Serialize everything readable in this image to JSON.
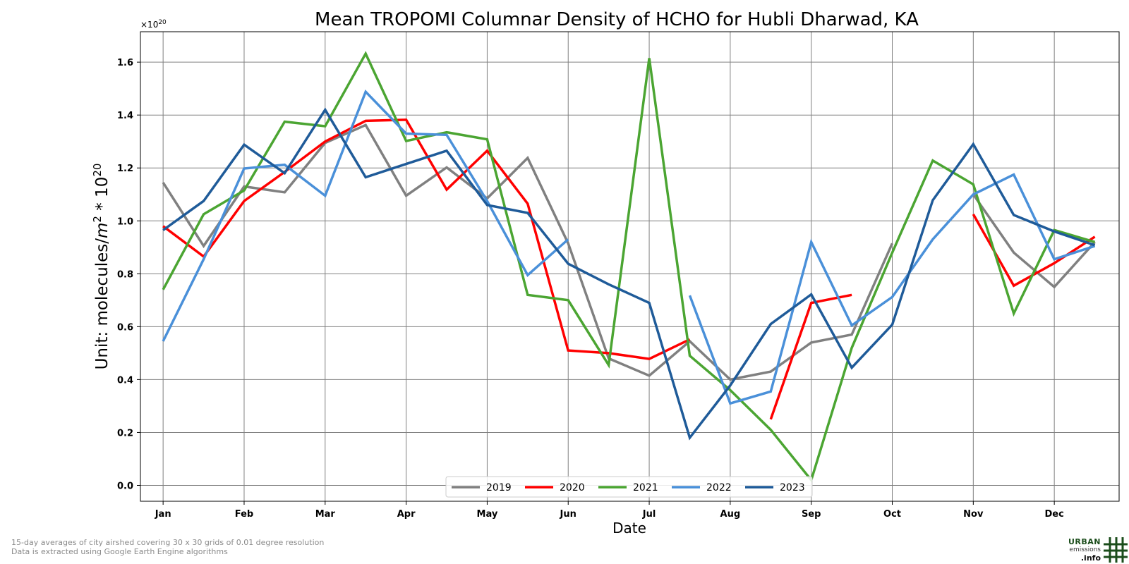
{
  "chart_data": {
    "type": "line",
    "title": "Mean TROPOMI Columnar Density of HCHO for Hubli Dharwad, KA",
    "xlabel": "Date",
    "ylabel_prefix": "Unit: molecules/",
    "ylabel_unit_base": "m",
    "ylabel_unit_exp": "2",
    "ylabel_mult": " * 10",
    "ylabel_mult_exp": "20",
    "y_offset_base": "×10",
    "y_offset_exp": "20",
    "ylim": [
      -0.06,
      1.715
    ],
    "xlim": [
      -0.56,
      23.6
    ],
    "yticks": [
      0.0,
      0.2,
      0.4,
      0.6,
      0.8,
      1.0,
      1.2,
      1.4,
      1.6
    ],
    "ytick_labels": [
      "0.0",
      "0.2",
      "0.4",
      "0.6",
      "0.8",
      "1.0",
      "1.2",
      "1.4",
      "1.6"
    ],
    "xticks": [
      0,
      2,
      4,
      6,
      8,
      10,
      12,
      14,
      16,
      18,
      20,
      22
    ],
    "xtick_labels": [
      "Jan",
      "Feb",
      "Mar",
      "Apr",
      "May",
      "Jun",
      "Jul",
      "Aug",
      "Sep",
      "Oct",
      "Nov",
      "Dec"
    ],
    "grid": true,
    "legend_position": "bottom-center",
    "series": [
      {
        "name": "2019",
        "color": "#808080",
        "values": [
          1.145,
          0.905,
          1.13,
          1.108,
          1.295,
          1.362,
          1.095,
          1.202,
          1.085,
          1.238,
          0.915,
          0.48,
          0.415,
          0.545,
          0.4,
          0.43,
          0.54,
          0.57,
          0.915,
          null,
          1.1,
          0.88,
          0.75,
          0.92
        ]
      },
      {
        "name": "2020",
        "color": "#ff0000",
        "values": [
          0.98,
          0.865,
          1.075,
          1.185,
          1.3,
          1.378,
          1.382,
          1.118,
          1.265,
          1.065,
          0.51,
          0.5,
          0.478,
          0.552,
          null,
          0.25,
          0.69,
          0.72,
          null,
          null,
          1.025,
          0.755,
          0.84,
          0.94
        ]
      },
      {
        "name": "2021",
        "color": "#4ba532",
        "values": [
          0.74,
          1.025,
          1.115,
          1.375,
          1.358,
          1.632,
          1.302,
          1.335,
          1.308,
          0.72,
          0.7,
          0.455,
          1.615,
          0.49,
          0.36,
          0.21,
          0.02,
          0.52,
          0.88,
          1.228,
          1.138,
          0.65,
          0.965,
          0.92
        ]
      },
      {
        "name": "2022",
        "color": "#4a90d9",
        "values": [
          0.545,
          0.855,
          1.198,
          1.212,
          1.095,
          1.488,
          1.33,
          1.325,
          1.075,
          0.795,
          0.93,
          null,
          null,
          0.718,
          0.31,
          0.355,
          0.92,
          0.605,
          0.712,
          0.93,
          1.1,
          1.175,
          0.855,
          0.905
        ]
      },
      {
        "name": "2023",
        "color": "#1f5b99",
        "values": [
          0.965,
          1.075,
          1.288,
          1.18,
          1.42,
          1.165,
          1.215,
          1.265,
          1.06,
          1.03,
          0.838,
          0.76,
          0.69,
          0.18,
          0.378,
          0.61,
          0.722,
          0.445,
          0.608,
          1.078,
          1.29,
          1.022,
          0.96,
          0.908
        ]
      }
    ]
  },
  "footnotes": {
    "line1": "15-day averages of city airshed covering 30 x 30 grids of 0.01 degree resolution",
    "line2": "Data is extracted using Google Earth Engine algorithms"
  },
  "logo": {
    "line1": "URBAN",
    "line2": "emissions",
    "line3": ".info",
    "color": "#1b4d1b"
  }
}
